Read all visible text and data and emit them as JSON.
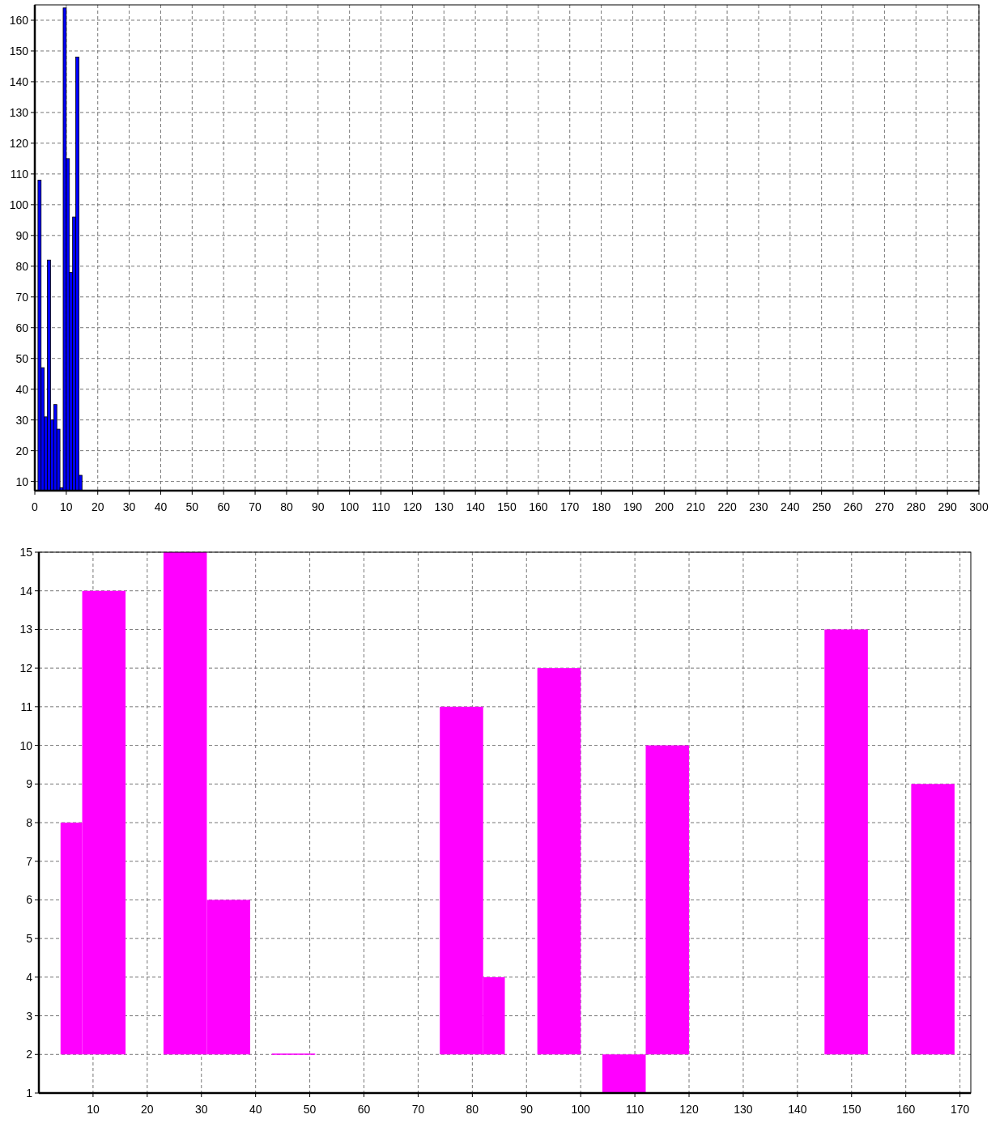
{
  "chart_data": [
    {
      "type": "histogram",
      "bins": [
        1,
        2,
        3,
        4,
        5,
        6,
        7,
        8,
        9,
        10,
        11,
        12,
        13,
        14,
        15
      ],
      "values": [
        108,
        47,
        31,
        82,
        30,
        35,
        27,
        8,
        164,
        115,
        78,
        96,
        148,
        12
      ],
      "color": "#0000ff",
      "xlim": [
        0,
        300
      ],
      "xticks": [
        0,
        10,
        20,
        30,
        40,
        50,
        60,
        70,
        80,
        90,
        100,
        110,
        120,
        130,
        140,
        150,
        160,
        170,
        180,
        190,
        200,
        210,
        220,
        230,
        240,
        250,
        260,
        270,
        280,
        290,
        300
      ],
      "ylim": [
        7,
        165
      ],
      "yticks": [
        10,
        20,
        30,
        40,
        50,
        60,
        70,
        80,
        90,
        100,
        110,
        120,
        130,
        140,
        150,
        160
      ],
      "grid": true
    },
    {
      "type": "histogram",
      "bins": [
        4,
        8,
        16,
        23,
        31,
        39,
        43,
        51,
        74,
        82,
        86,
        92,
        100,
        104,
        112,
        120,
        145,
        153,
        161,
        169
      ],
      "values": [
        6,
        12,
        null,
        13,
        4,
        null,
        0,
        null,
        9,
        2,
        null,
        10,
        null,
        1,
        8,
        null,
        11,
        null,
        7
      ],
      "base": [
        2,
        2,
        null,
        2,
        2,
        null,
        2,
        null,
        2,
        2,
        null,
        2,
        null,
        1,
        2,
        null,
        2,
        null,
        2
      ],
      "color": "#ff00ff",
      "xlim": [
        0,
        172
      ],
      "xticks": [
        10,
        20,
        30,
        40,
        50,
        60,
        70,
        80,
        90,
        100,
        110,
        120,
        130,
        140,
        150,
        160,
        170
      ],
      "ylim": [
        1,
        15
      ],
      "yticks": [
        1,
        2,
        3,
        4,
        5,
        6,
        7,
        8,
        9,
        10,
        11,
        12,
        13,
        14,
        15
      ],
      "grid": true
    }
  ]
}
